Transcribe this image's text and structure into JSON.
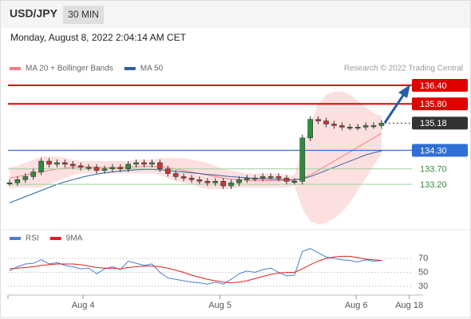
{
  "header": {
    "symbol": "USD/JPY",
    "interval": "30 MIN",
    "timestamp": "Monday, August 8, 2022 2:04:14 AM CET"
  },
  "chart_data": [
    {
      "type": "candlestick",
      "source": "Research © 2022 Trading Central",
      "xlim": [
        -0.5,
        58
      ],
      "ylim": [
        131.94,
        136.71
      ],
      "close": [
        133.25,
        133.35,
        133.45,
        133.6,
        133.95,
        133.85,
        133.9,
        133.85,
        133.8,
        133.75,
        133.75,
        133.65,
        133.7,
        133.75,
        133.7,
        133.85,
        133.9,
        133.85,
        133.9,
        133.7,
        133.55,
        133.45,
        133.4,
        133.35,
        133.3,
        133.25,
        133.3,
        133.15,
        133.25,
        133.35,
        133.4,
        133.4,
        133.45,
        133.45,
        133.4,
        133.3,
        133.3,
        134.7,
        135.3,
        135.25,
        135.15,
        135.1,
        135.05,
        135.05,
        135.05,
        135.1,
        135.1,
        135.18
      ],
      "up_color": "#2e8b3e",
      "down_color": "#d43030",
      "series": [
        {
          "name": "MA 20 + Bollinger Bands",
          "color": "#f08080",
          "band_color": "#fbd5d5",
          "values": [
            133.4,
            133.45,
            133.5,
            133.55,
            133.6,
            133.65,
            133.7,
            133.72,
            133.75,
            133.76,
            133.76,
            133.75,
            133.74,
            133.74,
            133.75,
            133.76,
            133.77,
            133.78,
            133.78,
            133.77,
            133.74,
            133.7,
            133.65,
            133.6,
            133.55,
            133.5,
            133.45,
            133.4,
            133.37,
            133.35,
            133.33,
            133.32,
            133.32,
            133.32,
            133.33,
            133.33,
            133.33,
            133.4,
            133.5,
            133.65,
            133.8,
            133.95,
            134.1,
            134.25,
            134.4,
            134.55,
            134.7,
            134.85
          ],
          "upper": [
            133.75,
            133.8,
            133.9,
            134.0,
            134.1,
            134.1,
            134.1,
            134.05,
            134.0,
            133.95,
            133.95,
            133.95,
            133.95,
            133.95,
            133.95,
            133.95,
            134.0,
            134.0,
            134.0,
            134.05,
            134.05,
            134.05,
            134.05,
            134.0,
            133.95,
            133.9,
            133.8,
            133.7,
            133.65,
            133.6,
            133.55,
            133.55,
            133.55,
            133.55,
            133.55,
            133.5,
            133.5,
            134.4,
            135.2,
            135.8,
            136.1,
            136.2,
            136.2,
            136.1,
            135.9,
            135.7,
            135.5,
            135.4
          ],
          "lower": [
            133.05,
            133.1,
            133.1,
            133.1,
            133.1,
            133.2,
            133.3,
            133.4,
            133.5,
            133.55,
            133.55,
            133.55,
            133.55,
            133.55,
            133.55,
            133.55,
            133.55,
            133.55,
            133.55,
            133.5,
            133.4,
            133.3,
            133.25,
            133.2,
            133.1,
            133.05,
            133.05,
            133.05,
            133.05,
            133.1,
            133.1,
            133.1,
            133.1,
            133.1,
            133.1,
            133.1,
            133.15,
            132.4,
            132.0,
            131.9,
            131.95,
            132.1,
            132.3,
            132.6,
            133.0,
            133.4,
            133.8,
            134.2
          ]
        },
        {
          "name": "MA 50",
          "color": "#2f5f9e",
          "values": [
            132.6,
            132.7,
            132.8,
            132.9,
            133.0,
            133.1,
            133.2,
            133.28,
            133.35,
            133.42,
            133.48,
            133.53,
            133.57,
            133.6,
            133.63,
            133.65,
            133.67,
            133.68,
            133.68,
            133.67,
            133.65,
            133.62,
            133.6,
            133.57,
            133.55,
            133.52,
            133.5,
            133.47,
            133.45,
            133.43,
            133.41,
            133.39,
            133.38,
            133.37,
            133.36,
            133.35,
            133.35,
            133.38,
            133.45,
            133.55,
            133.65,
            133.75,
            133.85,
            133.95,
            134.05,
            134.15,
            134.22,
            134.28
          ]
        }
      ],
      "levels": [
        {
          "value": 136.4,
          "label": "136.40",
          "color": "#e00000",
          "style": "solid",
          "box": true
        },
        {
          "value": 135.8,
          "label": "135.80",
          "color": "#e00000",
          "style": "solid",
          "box": true
        },
        {
          "value": 135.18,
          "label": "135.18",
          "color": "#333333",
          "style": "dotted",
          "box": true
        },
        {
          "value": 134.3,
          "label": "134.30",
          "color": "#2f6fd6",
          "style": "solid",
          "box": true
        },
        {
          "value": 133.7,
          "label": "133.70",
          "color": "#3a8a3a",
          "style": "solid",
          "box": false
        },
        {
          "value": 133.2,
          "label": "133.20",
          "color": "#3a8a3a",
          "style": "solid",
          "box": false
        }
      ]
    },
    {
      "type": "line",
      "xlim": [
        -0.5,
        58
      ],
      "ylim": [
        17.4,
        97.4
      ],
      "yticks": [
        70,
        50,
        30
      ],
      "grid": true,
      "xticks": [
        {
          "value": 9.3,
          "label": "Aug 4"
        },
        {
          "value": 26.6,
          "label": "Aug 5"
        },
        {
          "value": 43.8,
          "label": "Aug 6"
        },
        {
          "value": 50.5,
          "label": "Aug 18"
        }
      ],
      "series": [
        {
          "name": "RSI",
          "color": "#4a7fd4",
          "values": [
            52,
            58,
            62,
            63,
            68,
            62,
            64,
            60,
            58,
            55,
            56,
            48,
            55,
            58,
            54,
            66,
            63,
            60,
            62,
            50,
            42,
            40,
            38,
            36,
            35,
            33,
            36,
            33,
            40,
            48,
            52,
            50,
            54,
            56,
            50,
            45,
            46,
            80,
            84,
            78,
            72,
            70,
            68,
            67,
            65,
            68,
            66,
            67
          ]
        },
        {
          "name": "9MA",
          "color": "#e02020",
          "values": [
            55,
            56,
            57,
            58,
            60,
            61,
            62,
            62,
            62,
            61,
            59,
            57,
            56,
            56,
            55,
            57,
            58,
            59,
            59,
            58,
            56,
            53,
            50,
            46,
            43,
            40,
            38,
            36,
            35,
            36,
            38,
            41,
            44,
            47,
            49,
            50,
            50,
            55,
            61,
            66,
            70,
            72,
            73,
            73,
            71,
            69,
            68,
            67
          ]
        }
      ]
    }
  ]
}
